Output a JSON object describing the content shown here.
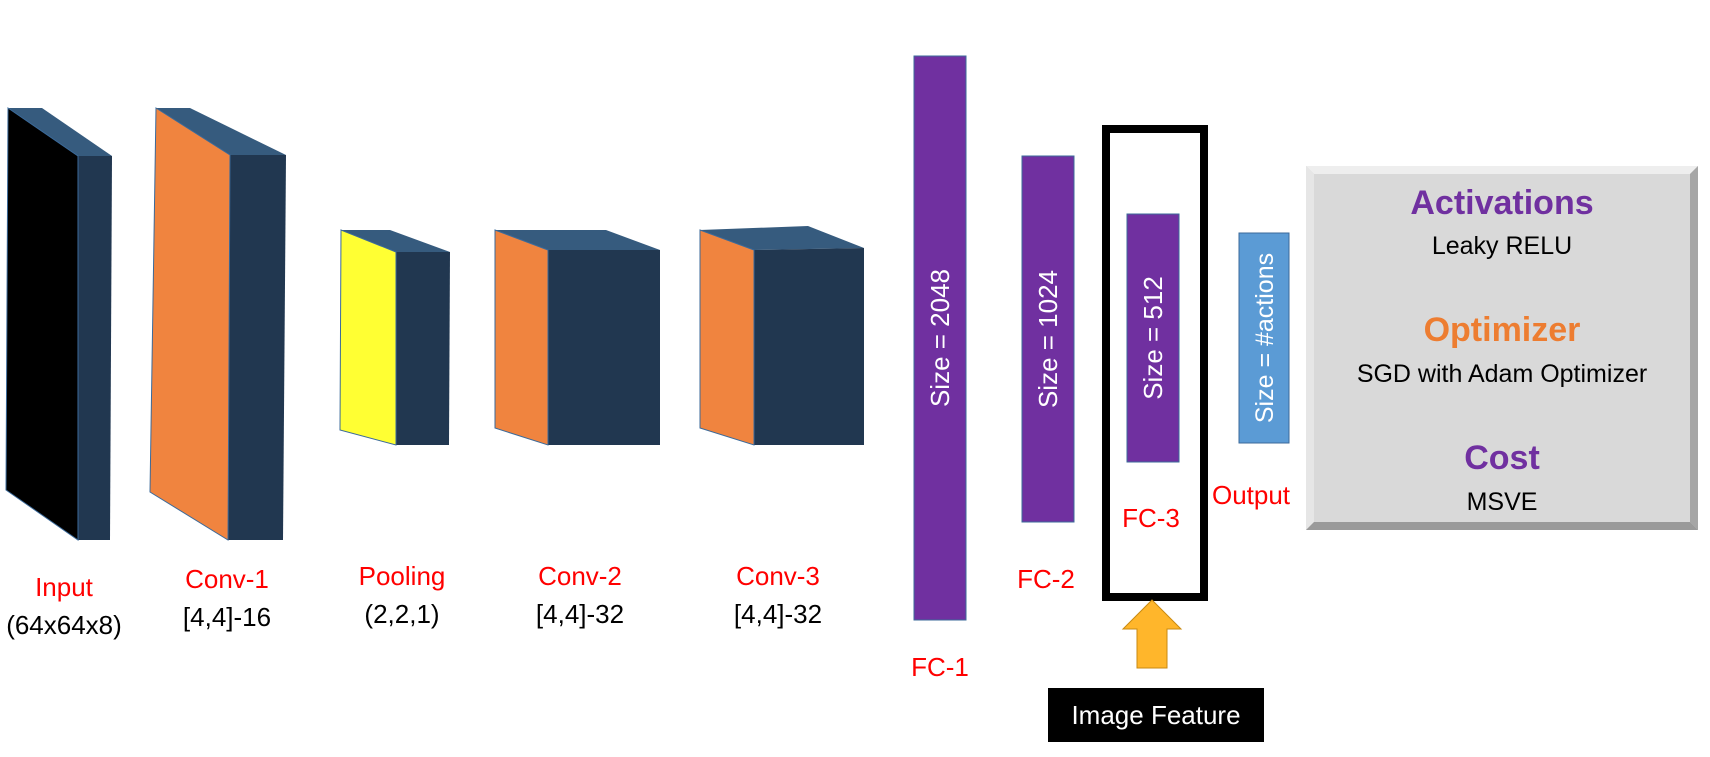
{
  "layers": [
    {
      "name": "Input",
      "detail": "(64x64x8)",
      "face_color": "#000000"
    },
    {
      "name": "Conv-1",
      "detail": "[4,4]-16",
      "face_color": "#f0843f"
    },
    {
      "name": "Pooling",
      "detail": "(2,2,1)",
      "face_color": "#ffff33"
    },
    {
      "name": "Conv-2",
      "detail": "[4,4]-32",
      "face_color": "#f0843f"
    },
    {
      "name": "Conv-3",
      "detail": "[4,4]-32",
      "face_color": "#f0843f"
    }
  ],
  "dense_layers": [
    {
      "label": "FC-1",
      "size_text": "Size = 2048"
    },
    {
      "label": "FC-2",
      "size_text": "Size = 1024"
    },
    {
      "label": "FC-3",
      "size_text": "Size = 512"
    }
  ],
  "output": {
    "label": "Output",
    "size_text": "Size = #actions"
  },
  "image_feature": {
    "label": "Image Feature"
  },
  "info_panel": {
    "activations_title": "Activations",
    "activations_value": "Leaky RELU",
    "optimizer_title": "Optimizer",
    "optimizer_value": "SGD with Adam Optimizer",
    "cost_title": "Cost",
    "cost_value": "MSVE"
  },
  "colors": {
    "label_red": "#ff0000",
    "block_dark": "#213750",
    "block_top": "#365b7e",
    "dense_purple": "#7030a0",
    "output_blue": "#5b9bd5",
    "panel_gray": "#d9d9d9",
    "arrow_yellow": "#ffb62b",
    "optimizer_orange": "#ed7d31"
  }
}
